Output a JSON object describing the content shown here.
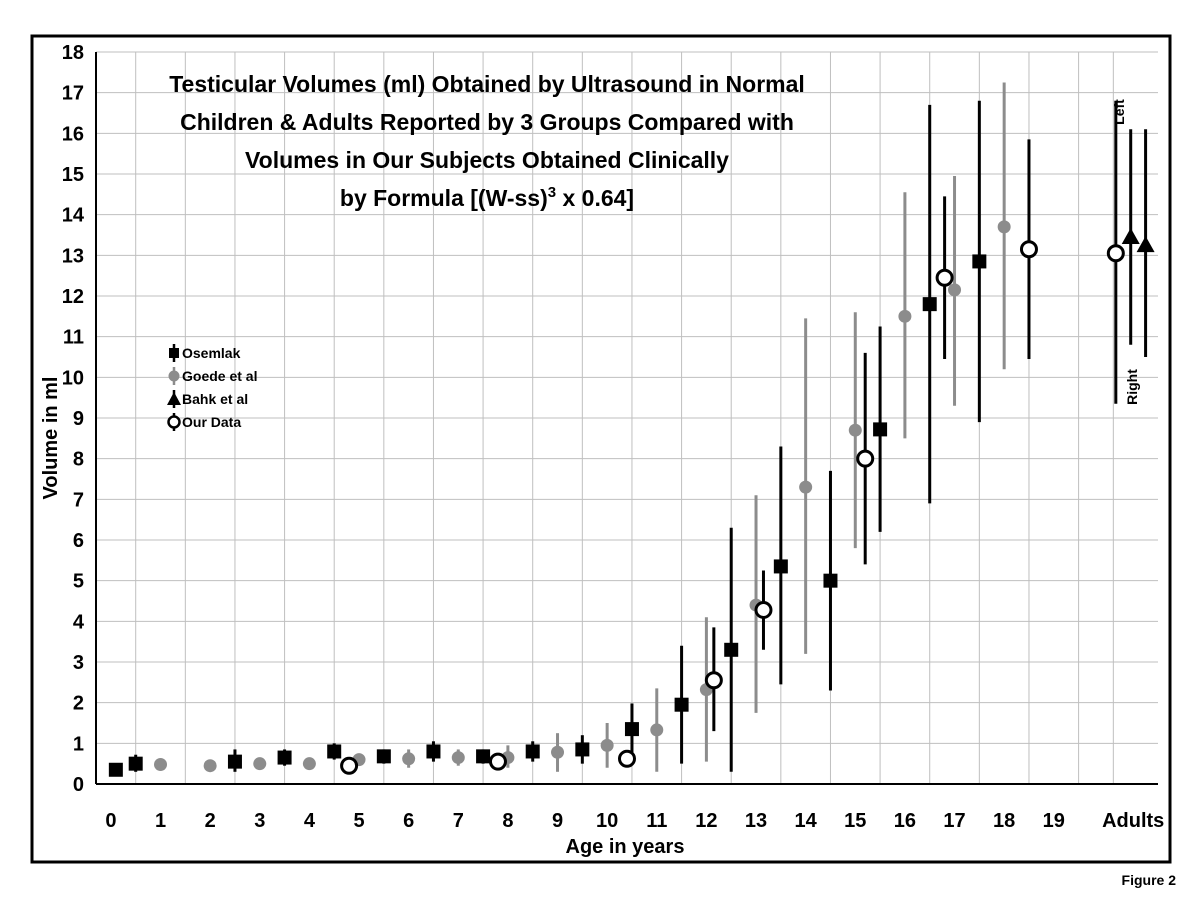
{
  "figure_label": "Figure 2",
  "colors": {
    "osemlak": "#000000",
    "goede": "#8c8c8c",
    "bahk": "#000000",
    "our": "#000000",
    "grid": "#bfbfbf"
  },
  "chart_data": {
    "type": "scatter",
    "title_lines": [
      "Testicular Volumes (ml) Obtained by Ultrasound in Normal",
      "Children & Adults Reported by 3 Groups Compared with",
      "Volumes in Our Subjects Obtained Clinically"
    ],
    "formula": {
      "prefix": "by Formula [(W-ss)",
      "sup": "3",
      "suffix": " x 0.64]"
    },
    "xlabel": "Age in years",
    "ylabel": "Volume in ml",
    "ylim": [
      0,
      18
    ],
    "xlim": [
      -0.3,
      21.1
    ],
    "y_ticks": [
      "0",
      "1",
      "2",
      "3",
      "4",
      "5",
      "6",
      "7",
      "8",
      "9",
      "10",
      "11",
      "12",
      "13",
      "14",
      "15",
      "16",
      "17",
      "18"
    ],
    "x_ticks": [
      {
        "x": 0,
        "label": "0"
      },
      {
        "x": 1,
        "label": "1"
      },
      {
        "x": 2,
        "label": "2"
      },
      {
        "x": 3,
        "label": "3"
      },
      {
        "x": 4,
        "label": "4"
      },
      {
        "x": 5,
        "label": "5"
      },
      {
        "x": 6,
        "label": "6"
      },
      {
        "x": 7,
        "label": "7"
      },
      {
        "x": 8,
        "label": "8"
      },
      {
        "x": 9,
        "label": "9"
      },
      {
        "x": 10,
        "label": "10"
      },
      {
        "x": 11,
        "label": "11"
      },
      {
        "x": 12,
        "label": "12"
      },
      {
        "x": 13,
        "label": "13"
      },
      {
        "x": 14,
        "label": "14"
      },
      {
        "x": 15,
        "label": "15"
      },
      {
        "x": 16,
        "label": "16"
      },
      {
        "x": 17,
        "label": "17"
      },
      {
        "x": 18,
        "label": "18"
      },
      {
        "x": 19,
        "label": "19"
      },
      {
        "x": 20.6,
        "label": "Adults"
      }
    ],
    "legend": {
      "placement": "left-middle",
      "entries": [
        "Osemlak",
        "Goede et al",
        "Bahk et al",
        "Our Data"
      ]
    },
    "side_labels": {
      "left": "Left",
      "right": "Right"
    },
    "series": [
      {
        "name": "Osemlak",
        "marker": "square",
        "color": "#000000",
        "points": [
          {
            "x": 0.1,
            "y": 0.35,
            "lo": 0.25,
            "hi": 0.45
          },
          {
            "x": 0.5,
            "y": 0.5,
            "lo": 0.3,
            "hi": 0.72
          },
          {
            "x": 2.5,
            "y": 0.55,
            "lo": 0.3,
            "hi": 0.85
          },
          {
            "x": 3.5,
            "y": 0.65,
            "lo": 0.45,
            "hi": 0.85
          },
          {
            "x": 4.5,
            "y": 0.8,
            "lo": 0.6,
            "hi": 1.0
          },
          {
            "x": 5.5,
            "y": 0.68,
            "lo": 0.5,
            "hi": 0.85
          },
          {
            "x": 6.5,
            "y": 0.8,
            "lo": 0.55,
            "hi": 1.05
          },
          {
            "x": 7.5,
            "y": 0.68,
            "lo": 0.5,
            "hi": 0.85
          },
          {
            "x": 8.5,
            "y": 0.8,
            "lo": 0.55,
            "hi": 1.05
          },
          {
            "x": 9.5,
            "y": 0.85,
            "lo": 0.5,
            "hi": 1.2
          },
          {
            "x": 10.5,
            "y": 1.35,
            "lo": 0.7,
            "hi": 1.98
          },
          {
            "x": 11.5,
            "y": 1.95,
            "lo": 0.5,
            "hi": 3.4
          },
          {
            "x": 12.5,
            "y": 3.3,
            "lo": 0.3,
            "hi": 6.3
          },
          {
            "x": 13.5,
            "y": 5.35,
            "lo": 2.45,
            "hi": 8.3
          },
          {
            "x": 14.5,
            "y": 5.0,
            "lo": 2.3,
            "hi": 7.7
          },
          {
            "x": 15.5,
            "y": 8.72,
            "lo": 6.2,
            "hi": 11.25
          },
          {
            "x": 16.5,
            "y": 11.8,
            "lo": 6.9,
            "hi": 16.7
          },
          {
            "x": 17.5,
            "y": 12.85,
            "lo": 8.9,
            "hi": 16.8
          }
        ]
      },
      {
        "name": "Goede et al",
        "marker": "circle-filled",
        "color": "#8c8c8c",
        "points": [
          {
            "x": 1,
            "y": 0.48,
            "lo": 0.4,
            "hi": 0.56
          },
          {
            "x": 2,
            "y": 0.45,
            "lo": 0.37,
            "hi": 0.55
          },
          {
            "x": 3,
            "y": 0.5,
            "lo": 0.4,
            "hi": 0.6
          },
          {
            "x": 4,
            "y": 0.5,
            "lo": 0.4,
            "hi": 0.6
          },
          {
            "x": 5,
            "y": 0.6,
            "lo": 0.45,
            "hi": 0.75
          },
          {
            "x": 6,
            "y": 0.62,
            "lo": 0.4,
            "hi": 0.85
          },
          {
            "x": 7,
            "y": 0.65,
            "lo": 0.45,
            "hi": 0.85
          },
          {
            "x": 8,
            "y": 0.65,
            "lo": 0.4,
            "hi": 0.95
          },
          {
            "x": 9,
            "y": 0.78,
            "lo": 0.3,
            "hi": 1.25
          },
          {
            "x": 10,
            "y": 0.95,
            "lo": 0.4,
            "hi": 1.5
          },
          {
            "x": 11,
            "y": 1.33,
            "lo": 0.3,
            "hi": 2.35
          },
          {
            "x": 12,
            "y": 2.32,
            "lo": 0.55,
            "hi": 4.1
          },
          {
            "x": 13,
            "y": 4.4,
            "lo": 1.75,
            "hi": 7.1
          },
          {
            "x": 14,
            "y": 7.3,
            "lo": 3.2,
            "hi": 11.45
          },
          {
            "x": 15,
            "y": 8.7,
            "lo": 5.8,
            "hi": 11.6
          },
          {
            "x": 16,
            "y": 11.5,
            "lo": 8.5,
            "hi": 14.55
          },
          {
            "x": 17,
            "y": 12.15,
            "lo": 9.3,
            "hi": 14.95
          },
          {
            "x": 18,
            "y": 13.7,
            "lo": 10.2,
            "hi": 17.25
          }
        ]
      },
      {
        "name": "Bahk et al",
        "marker": "triangle",
        "color": "#000000",
        "points": [
          {
            "x": 20.55,
            "y": 13.45,
            "lo": 10.8,
            "hi": 16.1,
            "side": "Left"
          },
          {
            "x": 20.85,
            "y": 13.25,
            "lo": 10.5,
            "hi": 16.1,
            "side": "Right"
          }
        ]
      },
      {
        "name": "Our Data",
        "marker": "circle-open",
        "color": "#000000",
        "points": [
          {
            "x": 4.8,
            "y": 0.45,
            "lo": 0.45,
            "hi": 0.45
          },
          {
            "x": 7.8,
            "y": 0.55,
            "lo": 0.55,
            "hi": 0.55
          },
          {
            "x": 10.4,
            "y": 0.62,
            "lo": 0.62,
            "hi": 0.62
          },
          {
            "x": 12.15,
            "y": 2.55,
            "lo": 1.3,
            "hi": 3.85
          },
          {
            "x": 13.15,
            "y": 4.28,
            "lo": 3.3,
            "hi": 5.25
          },
          {
            "x": 15.2,
            "y": 8.0,
            "lo": 5.4,
            "hi": 10.6
          },
          {
            "x": 16.8,
            "y": 12.45,
            "lo": 10.45,
            "hi": 14.45
          },
          {
            "x": 18.5,
            "y": 13.15,
            "lo": 10.45,
            "hi": 15.85
          },
          {
            "x": 20.25,
            "y": 13.05,
            "lo": 9.35,
            "hi": 16.8
          }
        ]
      }
    ]
  }
}
